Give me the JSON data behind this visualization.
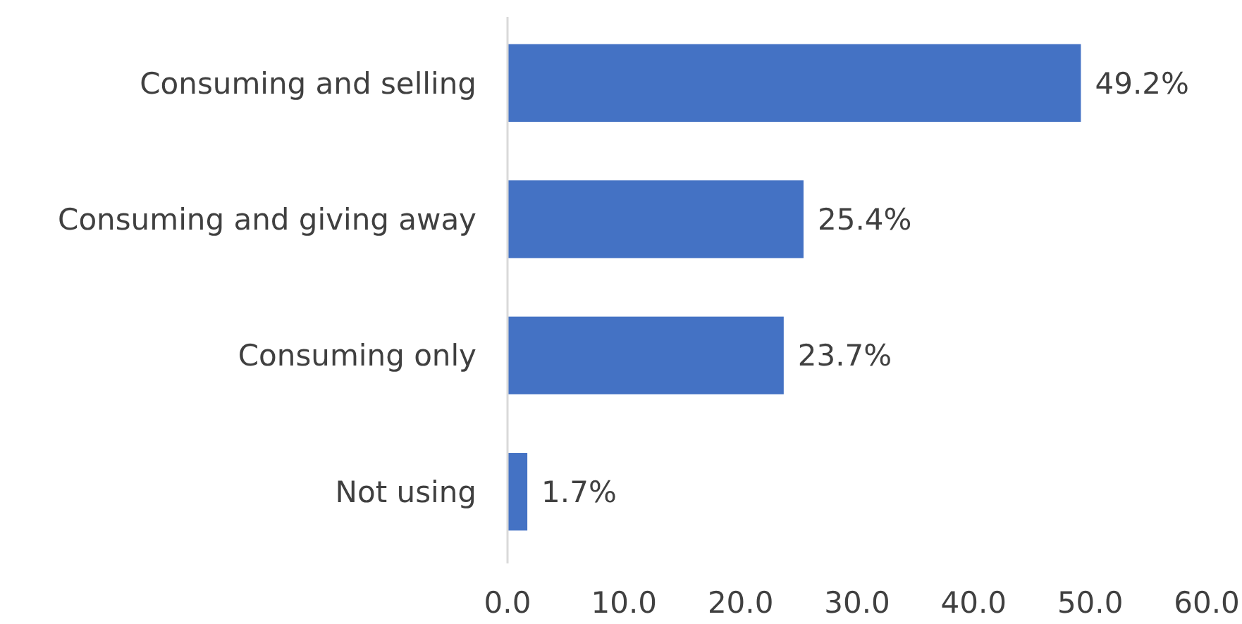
{
  "chart_data": {
    "type": "bar",
    "orientation": "horizontal",
    "categories": [
      "Consuming and selling",
      "Consuming and giving away",
      "Consuming only",
      "Not using"
    ],
    "values": [
      49.2,
      25.4,
      23.7,
      1.7
    ],
    "color": "#4472c4",
    "value_labels": [
      "49.2%",
      "25.4%",
      "23.7%",
      "1.7%"
    ],
    "xlim": [
      0,
      60
    ],
    "xticks": [
      {
        "value": 0,
        "label": "0.0"
      },
      {
        "value": 10,
        "label": "10.0"
      },
      {
        "value": 20,
        "label": "20.0"
      },
      {
        "value": 30,
        "label": "30.0"
      },
      {
        "value": 40,
        "label": "40.0"
      },
      {
        "value": 50,
        "label": "50.0"
      },
      {
        "value": 60,
        "label": "60.0"
      }
    ],
    "grid": false
  }
}
